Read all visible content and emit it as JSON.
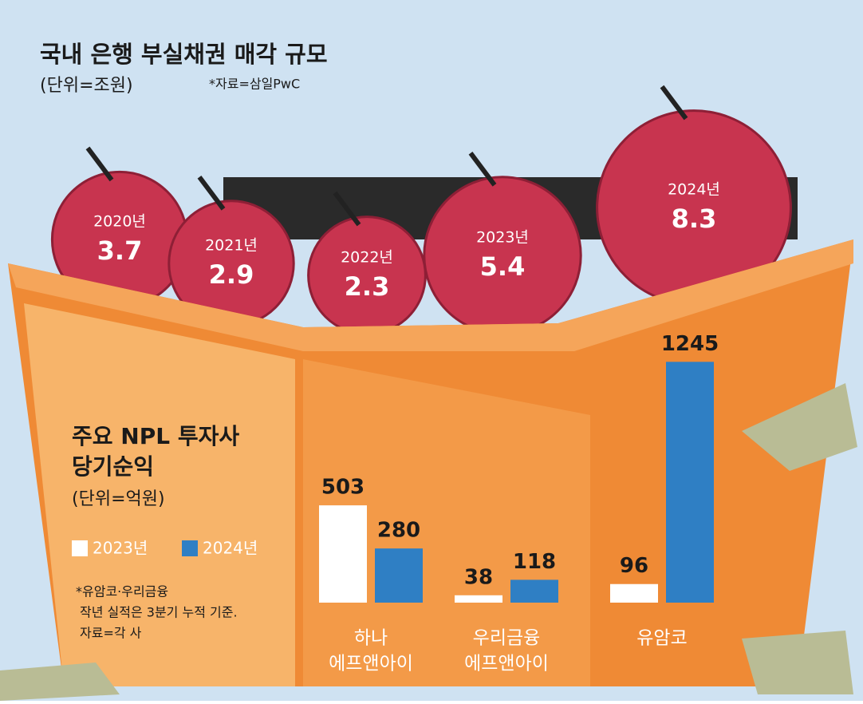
{
  "chart_data": [
    {
      "type": "pictorial",
      "title": "국내 은행 부실채권 매각 규모",
      "unit": "(단위=조원)",
      "source": "*자료=삼일PwC",
      "categories": [
        "2020년",
        "2021년",
        "2022년",
        "2023년",
        "2024년"
      ],
      "values": [
        3.7,
        2.9,
        2.3,
        5.4,
        8.3
      ],
      "color": "#c8344f"
    },
    {
      "type": "bar",
      "title": [
        "주요 NPL 투자사",
        "당기순익"
      ],
      "unit": "(단위=억원)",
      "categories": [
        [
          "하나",
          "에프앤아이"
        ],
        [
          "우리금융",
          "에프앤아이"
        ],
        [
          "유암코"
        ]
      ],
      "series": [
        {
          "name": "2023년",
          "color": "#ffffff",
          "values": [
            503,
            38,
            96
          ]
        },
        {
          "name": "2024년",
          "color": "#2f7fc4",
          "values": [
            280,
            118,
            1245
          ]
        }
      ],
      "ylim": [
        0,
        1300
      ],
      "note": [
        "*유암코·우리금융",
        "작년 실적은 3분기 누적 기준.",
        "자료=각 사"
      ]
    }
  ]
}
